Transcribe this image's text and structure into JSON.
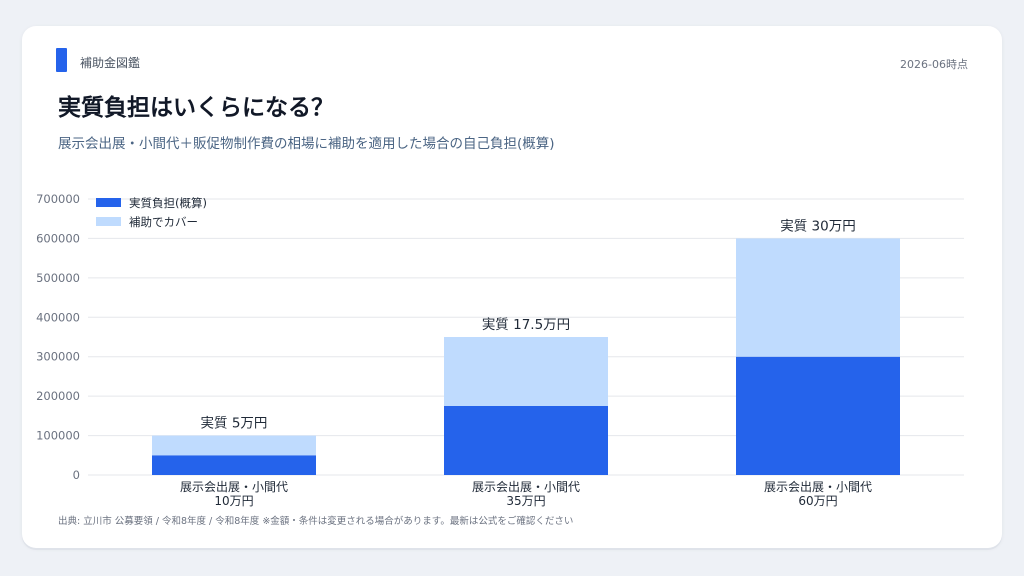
{
  "header": {
    "brand": "補助金図鑑",
    "as_of": "2026-06時点",
    "title": "実質負担はいくらになる？",
    "subtitle": "展示会出展・小間代＋販促物制作費の相場に補助を適用した場合の自己負担(概算)"
  },
  "footer": {
    "source": "出典: 立川市 公募要領 / 令和8年度 / 令和8年度 ※金額・条件は変更される場合があります。最新は公式をご確認ください"
  },
  "colors": {
    "accent": "#2563eb",
    "self_burden": "#2563eb",
    "subsidy": "#bfdbfe",
    "grid": "#e5e7eb",
    "axis_text": "#6b7280"
  },
  "chart_data": {
    "type": "bar",
    "stacked": true,
    "categories": [
      [
        "展示会出展・小間代",
        "10万円"
      ],
      [
        "展示会出展・小間代",
        "35万円"
      ],
      [
        "展示会出展・小間代",
        "60万円"
      ]
    ],
    "series": [
      {
        "name": "実質負担(概算)",
        "values": [
          50000,
          175000,
          300000
        ]
      },
      {
        "name": "補助でカバー",
        "values": [
          50000,
          175000,
          300000
        ]
      }
    ],
    "bar_labels": [
      "実質 5万円",
      "実質 17.5万円",
      "実質 30万円"
    ],
    "ylim": [
      0,
      700000
    ],
    "yticks": [
      0,
      100000,
      200000,
      300000,
      400000,
      500000,
      600000,
      700000
    ],
    "grid": true,
    "legend_position": "top-left"
  }
}
